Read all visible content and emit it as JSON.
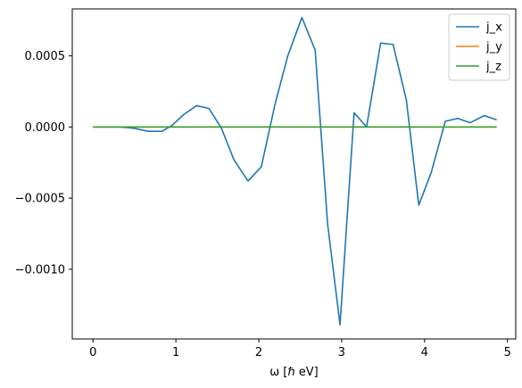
{
  "chart_data": {
    "type": "line",
    "xlabel": "ω [ℏ eV]",
    "ylabel": "",
    "xlim": [
      -0.25,
      5.1
    ],
    "ylim": [
      -0.00149,
      0.00083
    ],
    "xticks": [
      0,
      1,
      2,
      3,
      4,
      5
    ],
    "xtick_labels": [
      "0",
      "1",
      "2",
      "3",
      "4",
      "5"
    ],
    "yticks": [
      0.0005,
      0.0,
      -0.0005,
      -0.001
    ],
    "ytick_labels": [
      "0.0005",
      "0.0000",
      "−0.0005",
      "−0.0010"
    ],
    "grid": false,
    "legend_position": "top-right",
    "x": [
      0.0,
      0.167,
      0.333,
      0.5,
      0.667,
      0.833,
      0.95,
      1.1,
      1.25,
      1.4,
      1.55,
      1.7,
      1.87,
      2.03,
      2.2,
      2.35,
      2.52,
      2.68,
      2.83,
      2.98,
      3.15,
      3.3,
      3.47,
      3.62,
      3.78,
      3.93,
      4.08,
      4.25,
      4.4,
      4.55,
      4.72,
      4.87
    ],
    "series": [
      {
        "name": "j_x",
        "color": "#1f77b4",
        "values": [
          0.0,
          0.0,
          0.0,
          -1e-05,
          -3e-05,
          -3e-05,
          1e-05,
          9e-05,
          0.00015,
          0.00013,
          -1e-05,
          -0.00023,
          -0.00038,
          -0.00028,
          0.00017,
          0.0005,
          0.00077,
          0.00054,
          -0.00068,
          -0.00139,
          0.0001,
          0.0,
          0.00059,
          0.00058,
          0.00019,
          -0.00055,
          -0.00032,
          4e-05,
          6e-05,
          3e-05,
          8e-05,
          5e-05
        ]
      },
      {
        "name": "j_y",
        "color": "#ff7f0e",
        "values": [
          0,
          0,
          0,
          0,
          0,
          0,
          0,
          0,
          0,
          0,
          0,
          0,
          0,
          0,
          0,
          0,
          0,
          0,
          0,
          0,
          0,
          0,
          0,
          0,
          0,
          0,
          0,
          0,
          0,
          0,
          0,
          0
        ]
      },
      {
        "name": "j_z",
        "color": "#2ca02c",
        "values": [
          0,
          0,
          0,
          0,
          0,
          0,
          0,
          0,
          0,
          0,
          0,
          0,
          0,
          0,
          0,
          0,
          0,
          0,
          0,
          0,
          0,
          0,
          0,
          0,
          0,
          0,
          0,
          0,
          0,
          0,
          0,
          0
        ]
      }
    ]
  }
}
